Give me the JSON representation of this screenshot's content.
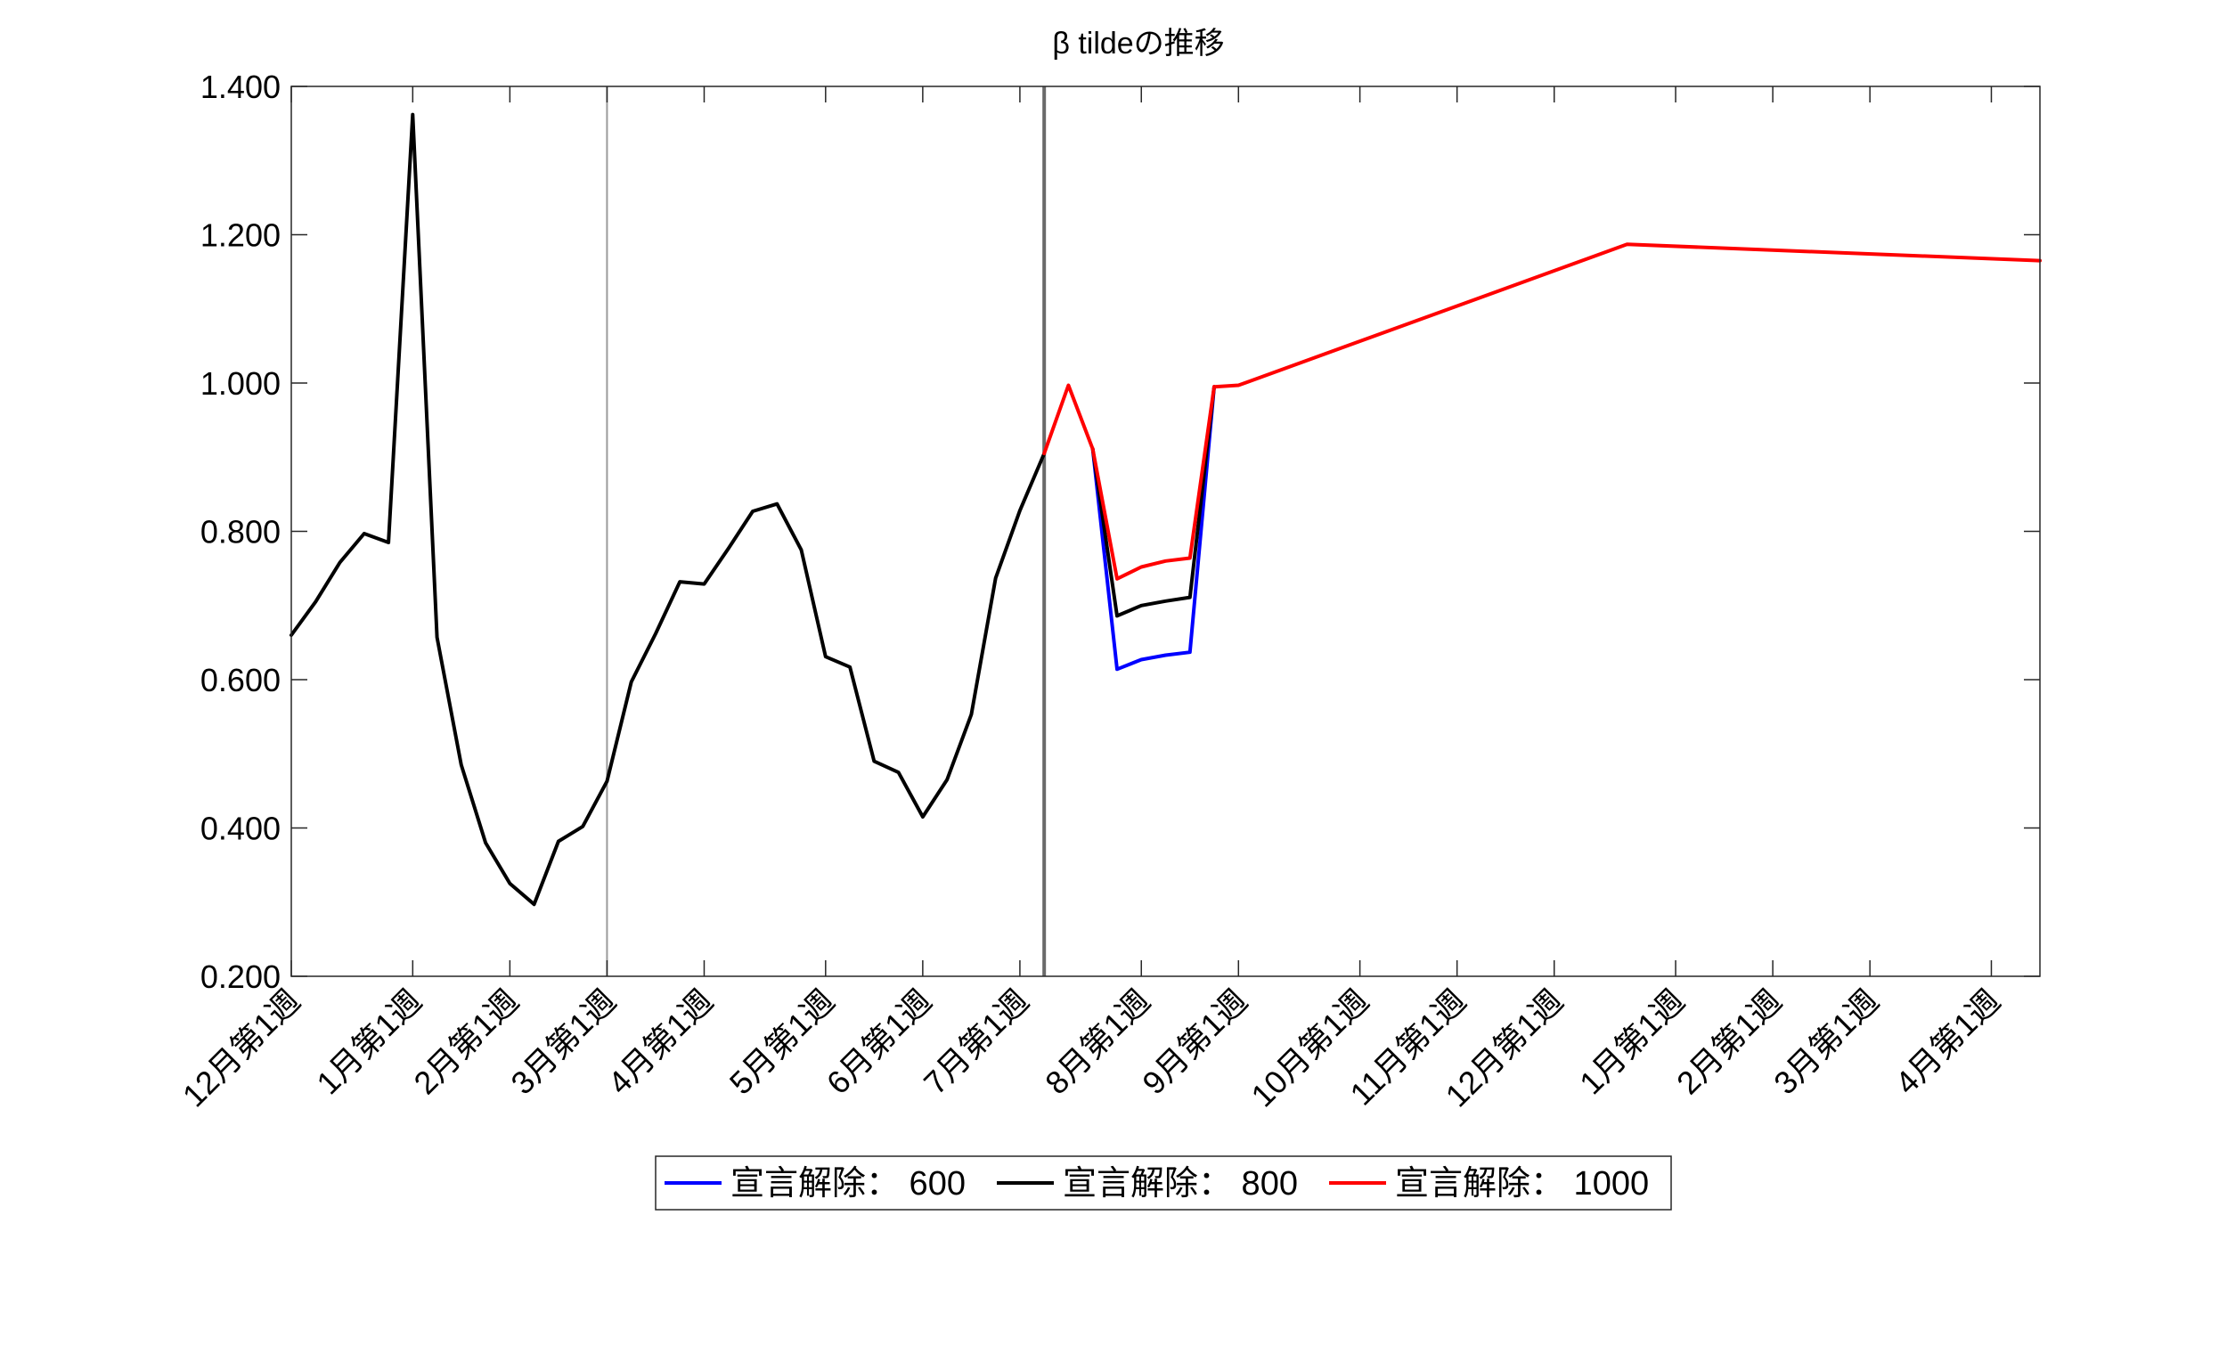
{
  "chart_data": {
    "type": "line",
    "title": "β tildeの推移",
    "xlabel": "",
    "ylabel": "",
    "ylim": [
      0.2,
      1.4
    ],
    "yticks": [
      "0.200",
      "0.400",
      "0.600",
      "0.800",
      "1.000",
      "1.200",
      "1.400"
    ],
    "yvalues": [
      0.2,
      0.4,
      0.6,
      0.8,
      1.0,
      1.2,
      1.4
    ],
    "grid": false,
    "legend_position": "bottom",
    "colors": {
      "blue": "#0000ff",
      "black": "#000000",
      "red": "#ff0000"
    },
    "xticks": [
      {
        "label": "12月第1週",
        "x": 0
      },
      {
        "label": "1月第1週",
        "x": 5
      },
      {
        "label": "2月第1週",
        "x": 9
      },
      {
        "label": "3月第1週",
        "x": 13
      },
      {
        "label": "4月第1週",
        "x": 17
      },
      {
        "label": "5月第1週",
        "x": 22
      },
      {
        "label": "6月第1週",
        "x": 26
      },
      {
        "label": "7月第1週",
        "x": 30
      },
      {
        "label": "8月第1週",
        "x": 35
      },
      {
        "label": "9月第1週",
        "x": 39
      },
      {
        "label": "10月第1週",
        "x": 44
      },
      {
        "label": "11月第1週",
        "x": 48
      },
      {
        "label": "12月第1週",
        "x": 52
      },
      {
        "label": "1月第1週",
        "x": 57
      },
      {
        "label": "2月第1週",
        "x": 61
      },
      {
        "label": "3月第1週",
        "x": 65
      },
      {
        "label": "4月第1週",
        "x": 70
      }
    ],
    "xlim": [
      0,
      72
    ],
    "vlines": [
      13,
      31
    ],
    "history": {
      "x": [
        0,
        1,
        2,
        3,
        4,
        5,
        6,
        7,
        8,
        9,
        10,
        11,
        12,
        13,
        14,
        15,
        16,
        17,
        18,
        19,
        20,
        21,
        22,
        23,
        24,
        25,
        26,
        27,
        28,
        29,
        30,
        31
      ],
      "y": [
        0.66,
        0.705,
        0.758,
        0.797,
        0.785,
        1.362,
        0.657,
        0.485,
        0.38,
        0.325,
        0.297,
        0.382,
        0.402,
        0.463,
        0.597,
        0.662,
        0.732,
        0.729,
        0.777,
        0.827,
        0.837,
        0.775,
        0.631,
        0.617,
        0.49,
        0.475,
        0.415,
        0.465,
        0.553,
        0.737,
        0.828,
        0.905
      ]
    },
    "forecast_common_1": {
      "x": [
        31,
        32,
        33
      ],
      "y": [
        0.905,
        0.997,
        0.911
      ]
    },
    "forecast_common_2": {
      "x": [
        38,
        39,
        55,
        72
      ],
      "y": [
        0.995,
        0.997,
        1.187,
        1.165
      ]
    },
    "series": [
      {
        "name": "宣言解除： 600",
        "color": "#0000ff",
        "x": [
          33,
          34,
          35,
          36,
          37,
          38
        ],
        "y": [
          0.911,
          0.614,
          0.627,
          0.633,
          0.637,
          0.995
        ]
      },
      {
        "name": "宣言解除： 800",
        "color": "#000000",
        "x": [
          33,
          34,
          35,
          36,
          37,
          38
        ],
        "y": [
          0.911,
          0.686,
          0.7,
          0.706,
          0.711,
          0.995
        ]
      },
      {
        "name": "宣言解除： 1000",
        "color": "#ff0000",
        "x": [
          33,
          34,
          35,
          36,
          37,
          38
        ],
        "y": [
          0.911,
          0.736,
          0.752,
          0.76,
          0.764,
          0.995
        ]
      }
    ]
  }
}
